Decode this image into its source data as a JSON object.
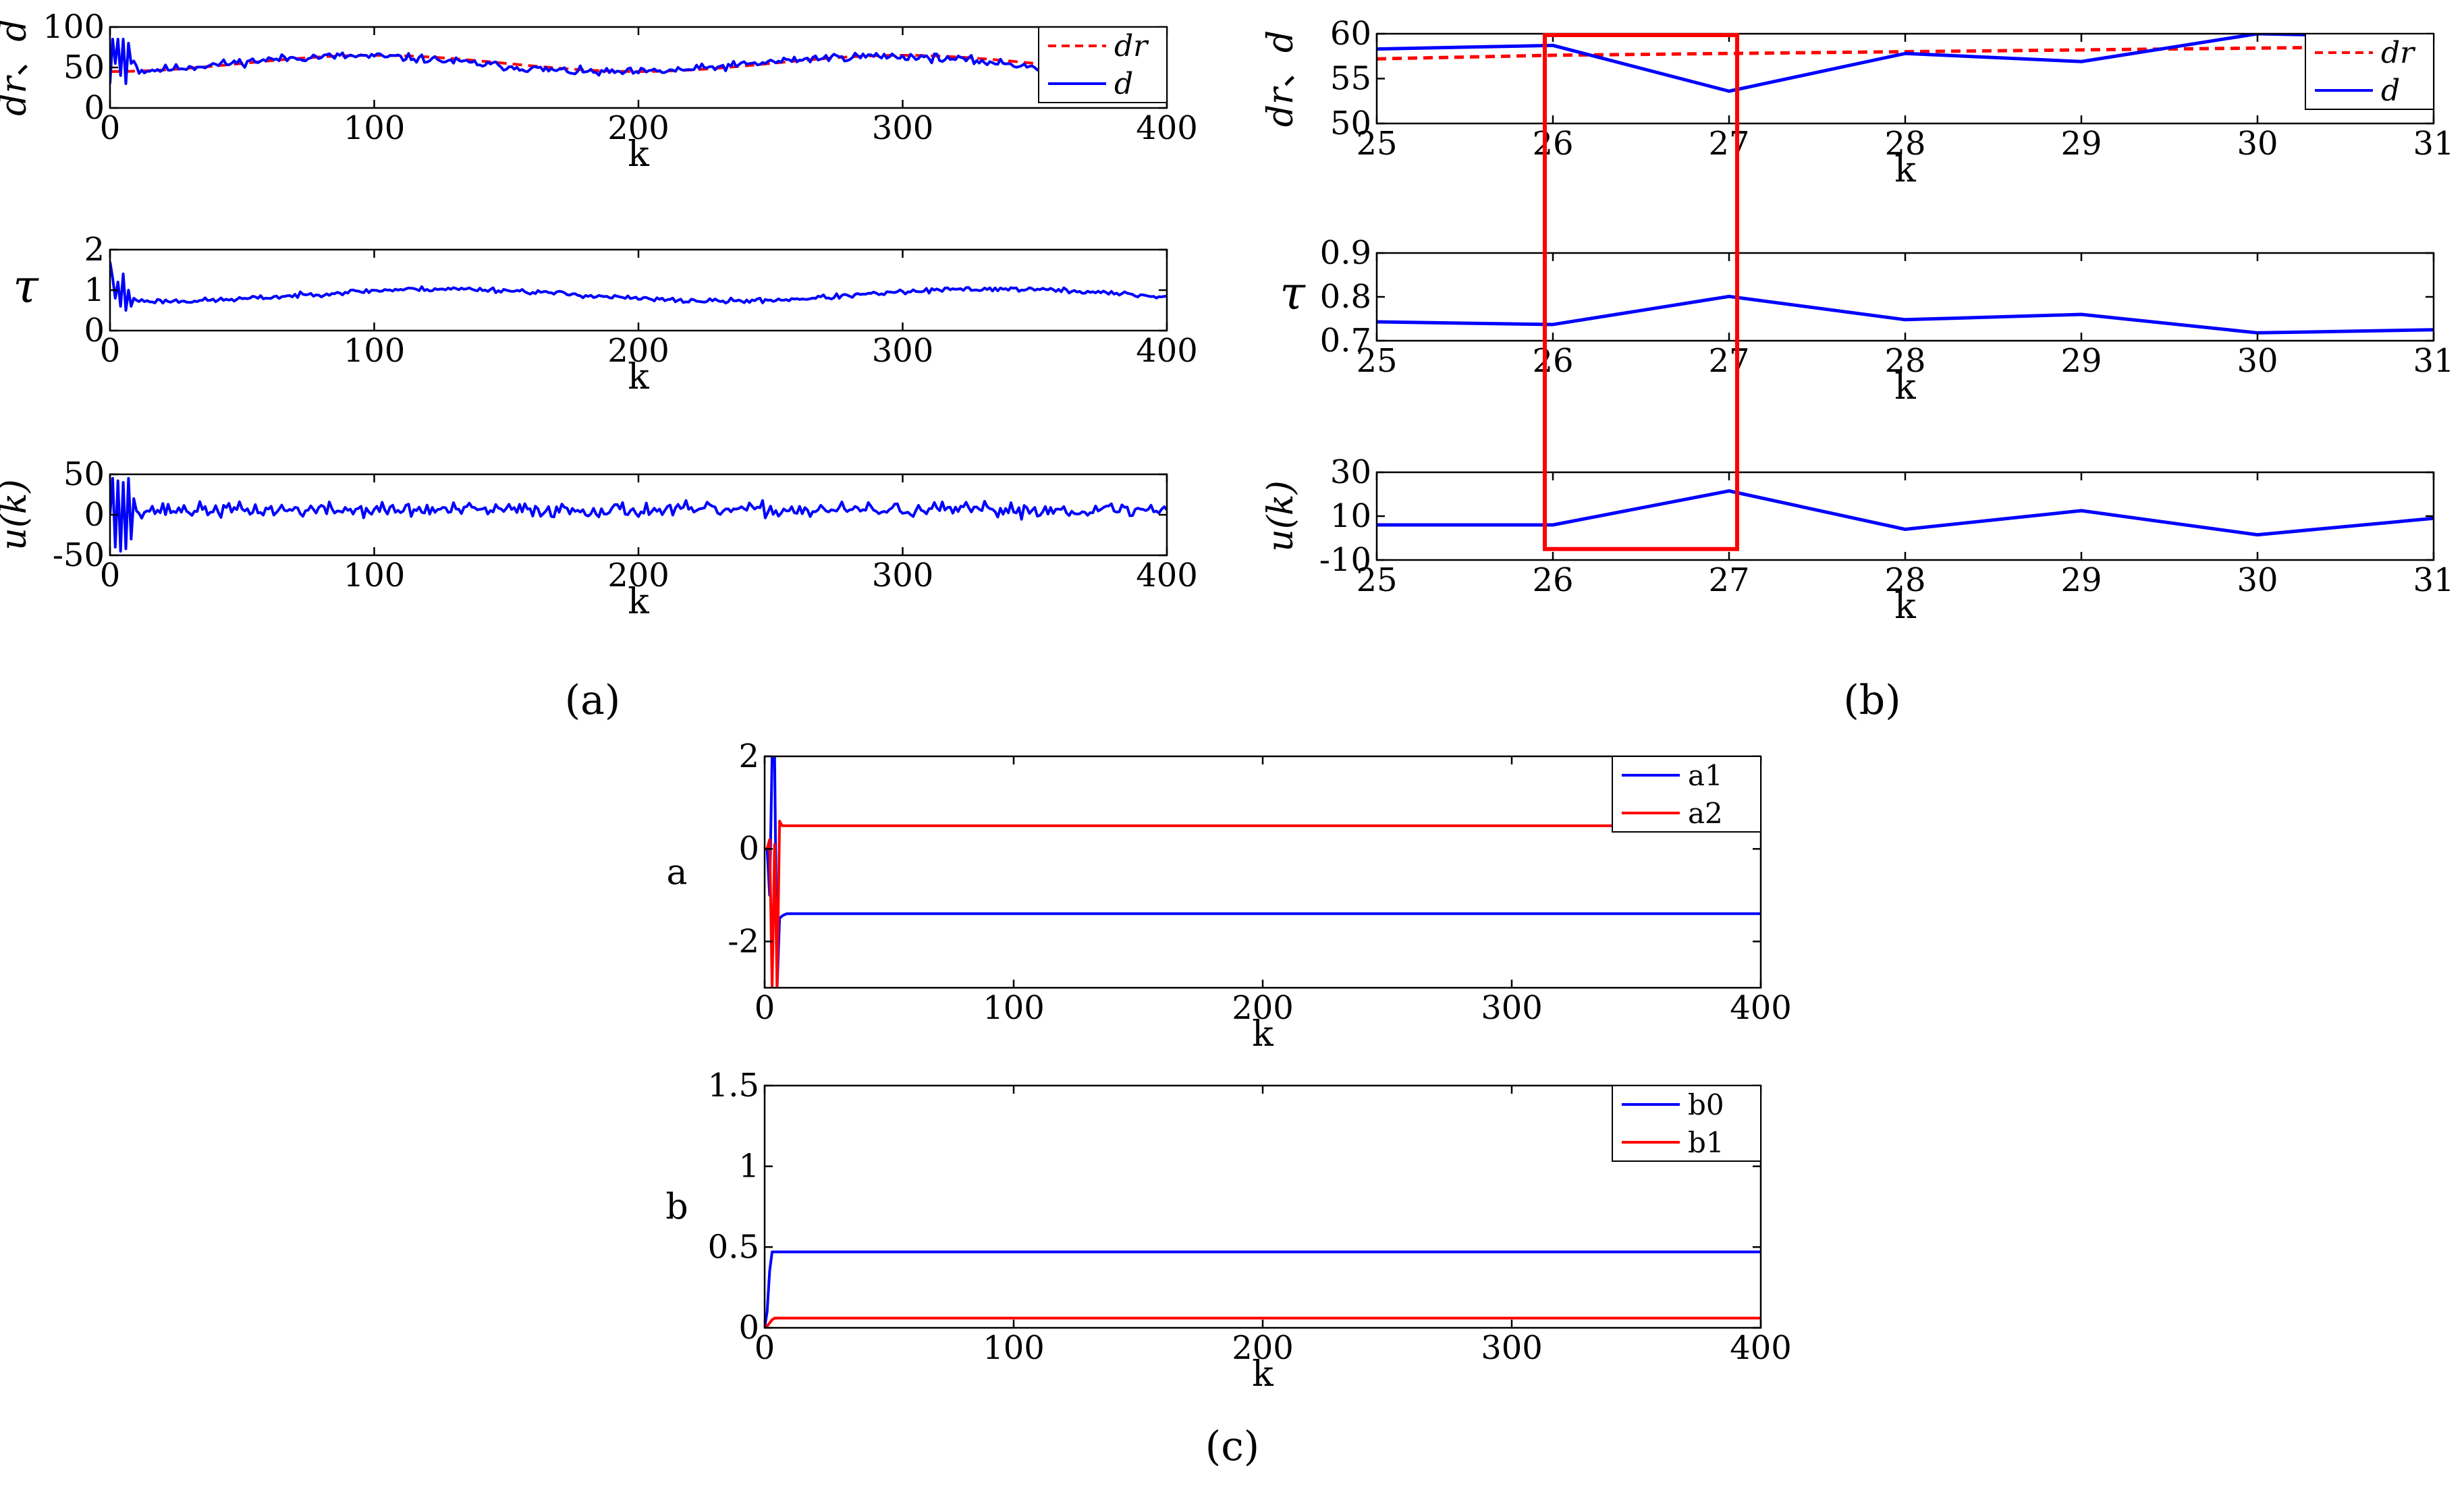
{
  "colors": {
    "blue": "#0000ff",
    "red": "#ff0000",
    "axis": "#000000",
    "box": "#ff0000"
  },
  "panel_labels": {
    "a": "(a)",
    "b": "(b)",
    "c": "(c)"
  },
  "chart_data": [
    {
      "id": "a1",
      "type": "line",
      "panel": "a",
      "ylabel_parts": [
        "dr",
        "、",
        "d"
      ],
      "xlabel": "k",
      "xlim": [
        0,
        400
      ],
      "ylim": [
        0,
        100
      ],
      "xticks": [
        0,
        100,
        200,
        300,
        400
      ],
      "yticks": [
        0,
        50,
        100
      ],
      "legend": {
        "placement": "top-right",
        "entries": [
          {
            "label": "dr",
            "color": "#ff0000",
            "dash": true
          },
          {
            "label": "d",
            "color": "#0000ff",
            "dash": false
          }
        ]
      },
      "series": [
        {
          "name": "dr",
          "color": "#ff0000",
          "dash": true,
          "mode": "smooth",
          "mean": 55,
          "amp": 10,
          "period": 200,
          "phase": -1.57,
          "noise": 0,
          "transient": null
        },
        {
          "name": "d",
          "color": "#0000ff",
          "dash": false,
          "mode": "noisy",
          "mean": 54,
          "amp": 10,
          "period": 200,
          "phase": -1.3,
          "noise": 2.5,
          "seed": 11,
          "transient": [
            [
              0,
              30
            ],
            [
              1,
              85
            ],
            [
              2,
              55
            ],
            [
              3,
              85
            ],
            [
              4,
              40
            ],
            [
              5,
              85
            ],
            [
              6,
              30
            ],
            [
              7,
              80
            ],
            [
              8,
              55
            ],
            [
              9,
              58
            ],
            [
              10,
              52
            ]
          ]
        }
      ]
    },
    {
      "id": "a2",
      "type": "line",
      "panel": "a",
      "ylabel_parts": [
        "τ"
      ],
      "xlabel": "k",
      "xlim": [
        0,
        400
      ],
      "ylim": [
        0,
        2
      ],
      "xticks": [
        0,
        100,
        200,
        300,
        400
      ],
      "yticks": [
        0,
        1,
        2
      ],
      "legend": null,
      "series": [
        {
          "name": "τ",
          "color": "#0000ff",
          "dash": false,
          "mode": "noisy",
          "mean": 0.88,
          "amp": 0.15,
          "period": 210,
          "phase": -2.2,
          "noise": 0.03,
          "seed": 23,
          "transient": [
            [
              0,
              1.7
            ],
            [
              1,
              1.3
            ],
            [
              2,
              0.8
            ],
            [
              3,
              1.2
            ],
            [
              4,
              0.6
            ],
            [
              5,
              1.4
            ],
            [
              6,
              0.5
            ],
            [
              7,
              1.0
            ],
            [
              8,
              0.6
            ],
            [
              9,
              0.8
            ],
            [
              10,
              0.75
            ]
          ]
        }
      ]
    },
    {
      "id": "a3",
      "type": "line",
      "panel": "a",
      "ylabel_parts": [
        "u(k)"
      ],
      "xlabel": "k",
      "xlim": [
        0,
        400
      ],
      "ylim": [
        -50,
        50
      ],
      "xticks": [
        0,
        100,
        200,
        300,
        400
      ],
      "yticks": [
        -50,
        0,
        50
      ],
      "legend": null,
      "series": [
        {
          "name": "u(k)",
          "color": "#0000ff",
          "dash": false,
          "mode": "noisy",
          "mean": 6,
          "amp": 0,
          "period": 200,
          "phase": 0,
          "noise": 4.5,
          "seed": 37,
          "transient": [
            [
              0,
              0
            ],
            [
              1,
              45
            ],
            [
              2,
              -40
            ],
            [
              3,
              42
            ],
            [
              4,
              -45
            ],
            [
              5,
              40
            ],
            [
              6,
              -42
            ],
            [
              7,
              45
            ],
            [
              8,
              -30
            ],
            [
              9,
              20
            ],
            [
              10,
              5
            ]
          ]
        }
      ]
    },
    {
      "id": "b1",
      "type": "line",
      "panel": "b",
      "ylabel_parts": [
        "dr",
        "、",
        "d"
      ],
      "xlabel": "k",
      "xlim": [
        25,
        31
      ],
      "ylim": [
        50,
        60
      ],
      "xticks": [
        25,
        26,
        27,
        28,
        29,
        30,
        31
      ],
      "yticks": [
        50,
        55,
        60
      ],
      "legend": {
        "placement": "top-right",
        "entries": [
          {
            "label": "dr",
            "color": "#ff0000",
            "dash": true
          },
          {
            "label": "d",
            "color": "#0000ff",
            "dash": false
          }
        ]
      },
      "series": [
        {
          "name": "dr",
          "color": "#ff0000",
          "dash": true,
          "mode": "points",
          "x": [
            25,
            26,
            27,
            28,
            29,
            30,
            31
          ],
          "y": [
            57.2,
            57.6,
            57.8,
            58.0,
            58.2,
            58.4,
            58.6
          ]
        },
        {
          "name": "d",
          "color": "#0000ff",
          "dash": false,
          "mode": "points",
          "x": [
            25,
            26,
            27,
            28,
            29,
            30,
            31
          ],
          "y": [
            58.3,
            58.7,
            53.6,
            57.8,
            56.9,
            60.0,
            59.6
          ]
        }
      ]
    },
    {
      "id": "b2",
      "type": "line",
      "panel": "b",
      "ylabel_parts": [
        "τ"
      ],
      "xlabel": "k",
      "xlim": [
        25,
        31
      ],
      "ylim": [
        0.7,
        0.9
      ],
      "xticks": [
        25,
        26,
        27,
        28,
        29,
        30,
        31
      ],
      "yticks": [
        0.7,
        0.8,
        0.9
      ],
      "legend": null,
      "series": [
        {
          "name": "τ",
          "color": "#0000ff",
          "dash": false,
          "mode": "points",
          "x": [
            25,
            26,
            27,
            28,
            29,
            30,
            31
          ],
          "y": [
            0.743,
            0.737,
            0.801,
            0.748,
            0.76,
            0.718,
            0.725
          ]
        }
      ]
    },
    {
      "id": "b3",
      "type": "line",
      "panel": "b",
      "ylabel_parts": [
        "u(k)"
      ],
      "xlabel": "k",
      "xlim": [
        25,
        31
      ],
      "ylim": [
        -10,
        30
      ],
      "xticks": [
        25,
        26,
        27,
        28,
        29,
        30,
        31
      ],
      "yticks": [
        -10,
        10,
        30
      ],
      "legend": null,
      "series": [
        {
          "name": "u(k)",
          "color": "#0000ff",
          "dash": false,
          "mode": "points",
          "x": [
            25,
            26,
            27,
            28,
            29,
            30,
            31
          ],
          "y": [
            6.0,
            6.0,
            21.5,
            4.0,
            12.5,
            1.5,
            9.0
          ]
        }
      ]
    },
    {
      "id": "c1",
      "type": "line",
      "panel": "c",
      "ylabel_parts": [
        "a"
      ],
      "xlabel": "k",
      "xlim": [
        0,
        400
      ],
      "ylim": [
        -3,
        2
      ],
      "xticks": [
        0,
        100,
        200,
        300,
        400
      ],
      "yticks": [
        -2,
        0,
        2
      ],
      "legend": {
        "placement": "top-right",
        "entries": [
          {
            "label": "a1",
            "color": "#0000ff",
            "dash": false
          },
          {
            "label": "a2",
            "color": "#ff0000",
            "dash": false
          }
        ]
      },
      "series": [
        {
          "name": "a1",
          "color": "#0000ff",
          "dash": false,
          "mode": "step",
          "settle": -1.4,
          "transient": [
            [
              0,
              0
            ],
            [
              1,
              0
            ],
            [
              2,
              -1
            ],
            [
              3,
              2
            ],
            [
              4,
              2
            ],
            [
              5,
              -3
            ],
            [
              6,
              -1.5
            ],
            [
              7,
              -1.45
            ],
            [
              8,
              -1.42
            ],
            [
              9,
              -1.4
            ],
            [
              10,
              -1.4
            ]
          ]
        },
        {
          "name": "a2",
          "color": "#ff0000",
          "dash": false,
          "mode": "step",
          "settle": 0.5,
          "transient": [
            [
              0,
              0
            ],
            [
              1,
              0
            ],
            [
              2,
              0.2
            ],
            [
              3,
              -3
            ],
            [
              4,
              0.1
            ],
            [
              5,
              -3
            ],
            [
              6,
              0.6
            ],
            [
              7,
              0.5
            ],
            [
              8,
              0.5
            ],
            [
              9,
              0.5
            ],
            [
              10,
              0.5
            ]
          ]
        }
      ]
    },
    {
      "id": "c2",
      "type": "line",
      "panel": "c",
      "ylabel_parts": [
        "b"
      ],
      "xlabel": "k",
      "xlim": [
        0,
        400
      ],
      "ylim": [
        0,
        1.5
      ],
      "xticks": [
        0,
        100,
        200,
        300,
        400
      ],
      "yticks": [
        0,
        0.5,
        1,
        1.5
      ],
      "legend": {
        "placement": "top-right",
        "entries": [
          {
            "label": "b0",
            "color": "#0000ff",
            "dash": false
          },
          {
            "label": "b1",
            "color": "#ff0000",
            "dash": false
          }
        ]
      },
      "series": [
        {
          "name": "b0",
          "color": "#0000ff",
          "dash": false,
          "mode": "step",
          "settle": 0.47,
          "transient": [
            [
              0,
              0
            ],
            [
              1,
              0.1
            ],
            [
              2,
              0.35
            ],
            [
              3,
              0.47
            ],
            [
              4,
              0.47
            ]
          ]
        },
        {
          "name": "b1",
          "color": "#ff0000",
          "dash": false,
          "mode": "step",
          "settle": 0.06,
          "transient": [
            [
              0,
              0
            ],
            [
              1,
              0.01
            ],
            [
              2,
              0.03
            ],
            [
              3,
              0.05
            ],
            [
              4,
              0.06
            ],
            [
              5,
              0.06
            ]
          ]
        }
      ]
    }
  ],
  "highlight": {
    "x_from": 26,
    "x_to": 27,
    "panel": "b"
  }
}
